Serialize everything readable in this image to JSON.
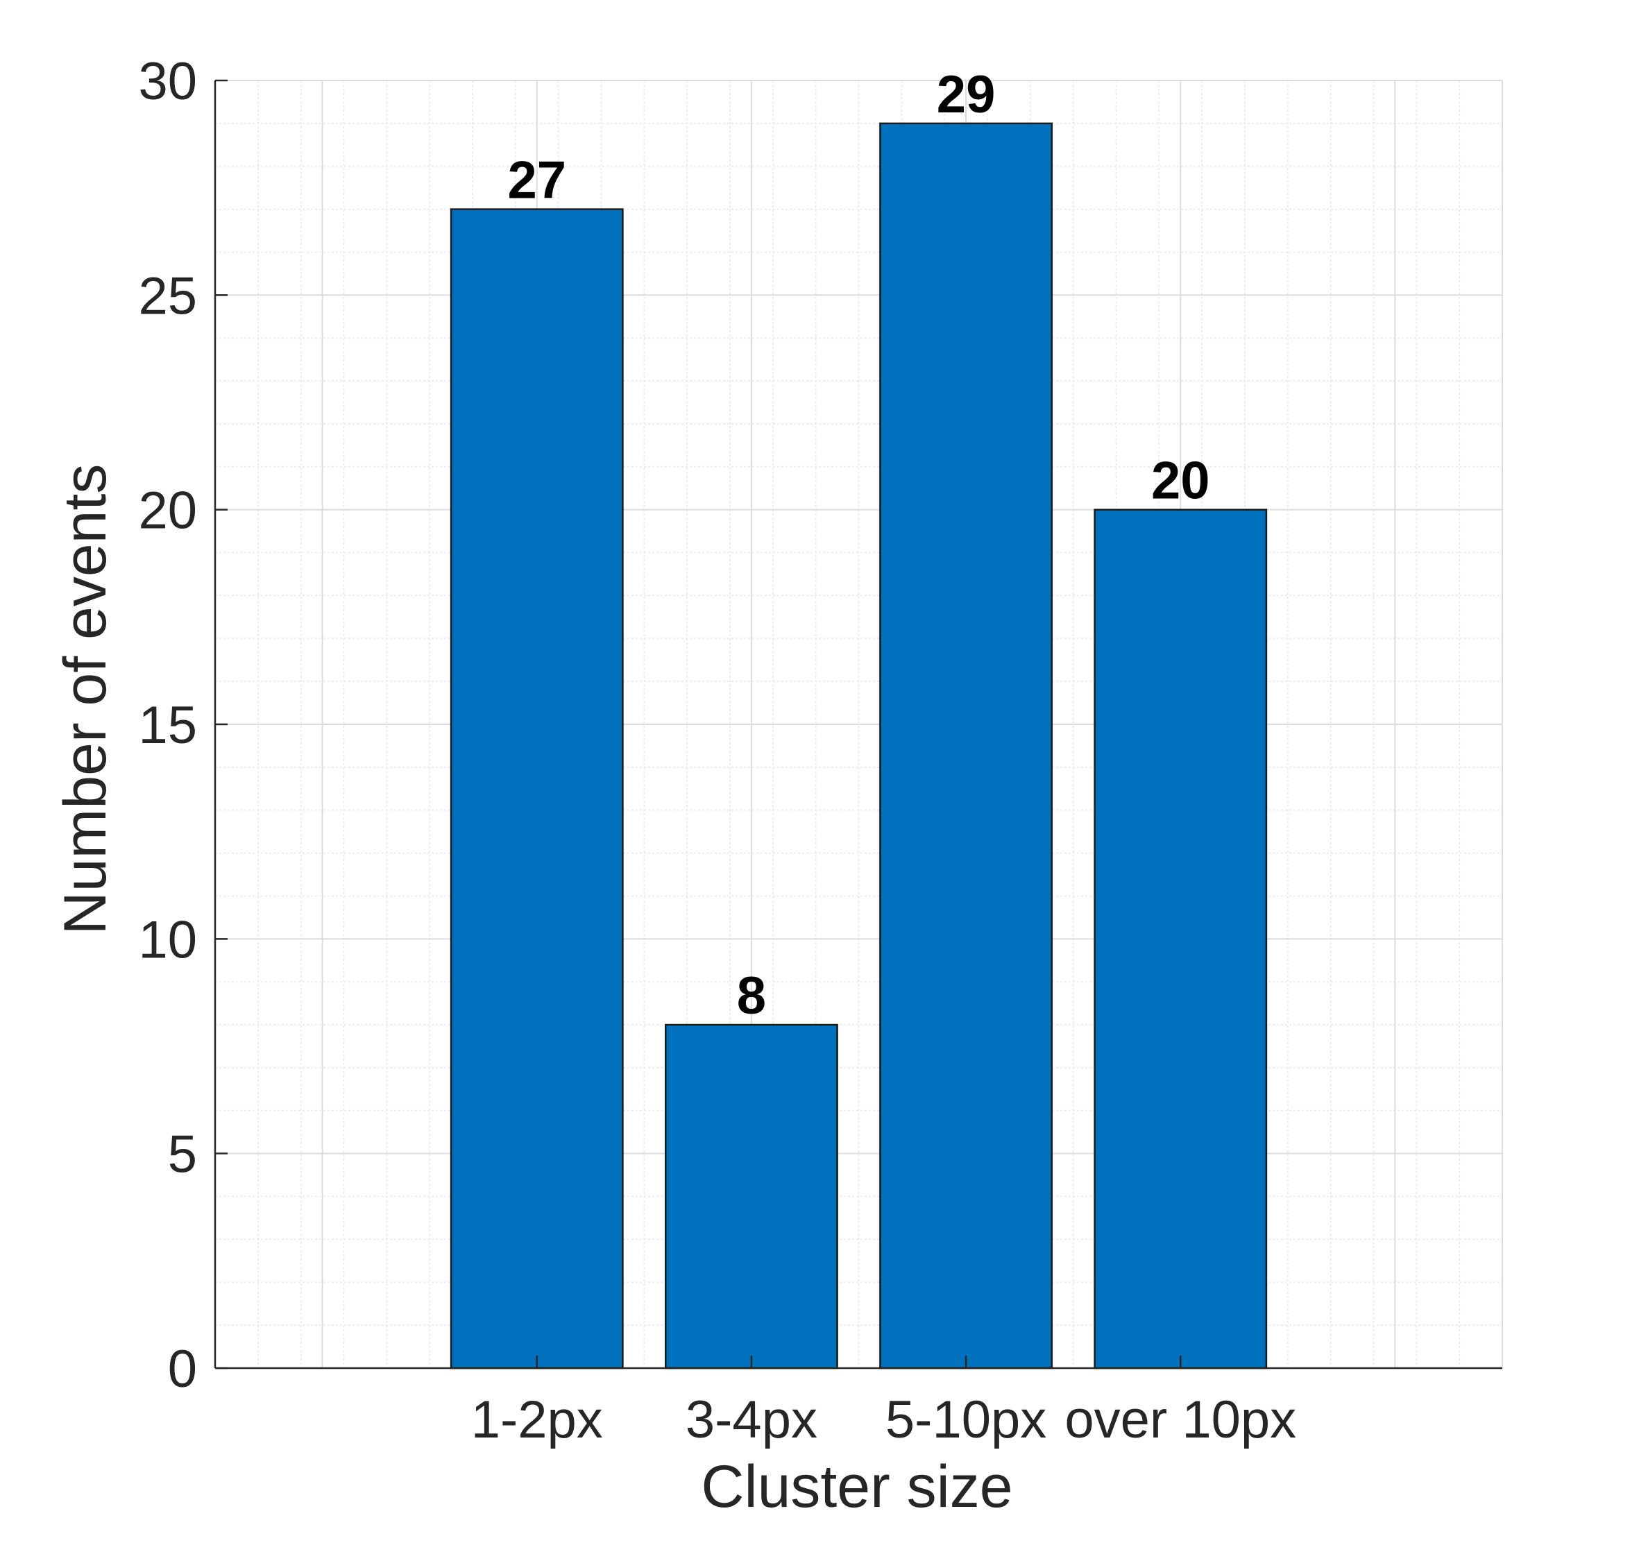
{
  "chart_data": {
    "type": "bar",
    "categories": [
      "1-2px",
      "3-4px",
      "5-10px",
      "over 10px"
    ],
    "values": [
      27,
      8,
      29,
      20
    ],
    "data_labels": [
      "27",
      "8",
      "29",
      "20"
    ],
    "title": "",
    "xlabel": "Cluster size",
    "ylabel": "Number of events",
    "ylim": [
      0,
      30
    ],
    "yticks": [
      0,
      5,
      10,
      15,
      20,
      25,
      30
    ],
    "ytick_labels": [
      "0",
      "5",
      "10",
      "15",
      "20",
      "25",
      "30"
    ],
    "x_category_slots": [
      -1,
      0,
      1,
      2,
      3,
      4
    ],
    "grid": true,
    "minor_grid": true,
    "legend": "none",
    "colors": {
      "bar_fill": "#0072BD",
      "bar_edge": "#1a1a1a",
      "axis": "#262626",
      "grid_major": "#dcdcdc",
      "grid_minor": "#ececec"
    }
  }
}
